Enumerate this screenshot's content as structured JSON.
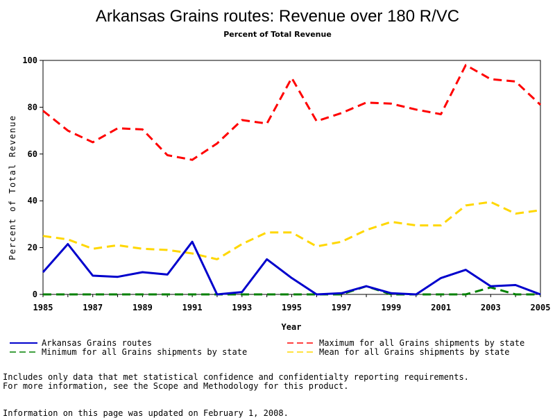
{
  "chart_data": {
    "type": "line",
    "title": "Arkansas Grains routes: Revenue over 180 R/VC",
    "subtitle": "Percent of Total Revenue",
    "xlabel": "Year",
    "ylabel": "Percent of Total Revenue",
    "xlim": [
      1985,
      2005
    ],
    "ylim": [
      0,
      100
    ],
    "x_ticks": [
      "1985",
      "1987",
      "1989",
      "1991",
      "1993",
      "1995",
      "1997",
      "1999",
      "2001",
      "2003",
      "2005"
    ],
    "y_ticks": [
      "0",
      "20",
      "40",
      "60",
      "80",
      "100"
    ],
    "grid": false,
    "legend_position": "bottom",
    "x": [
      1985,
      1986,
      1987,
      1988,
      1989,
      1990,
      1991,
      1992,
      1993,
      1994,
      1995,
      1996,
      1997,
      1998,
      1999,
      2000,
      2001,
      2002,
      2003,
      2004,
      2005
    ],
    "series": [
      {
        "name": "Arkansas Grains routes",
        "color": "#0000cc",
        "style": "solid",
        "values": [
          9.5,
          21.5,
          8,
          7.5,
          9.5,
          8.5,
          22.5,
          0,
          1,
          15,
          7,
          0,
          0.5,
          3.5,
          0.5,
          0,
          7,
          10.5,
          3.5,
          4,
          0
        ]
      },
      {
        "name": "Maximum for all Grains shipments by state",
        "color": "#ff0000",
        "style": "dashed",
        "values": [
          78.5,
          70,
          65,
          71,
          70.5,
          59.5,
          57.5,
          64.5,
          74.5,
          73,
          92.5,
          74,
          77.5,
          82,
          81.5,
          79,
          77,
          98,
          92,
          91,
          81
        ]
      },
      {
        "name": "Minimum for all Grains shipments by state",
        "color": "#008000",
        "style": "dashed",
        "values": [
          0,
          0,
          0,
          0,
          0,
          0,
          0,
          0,
          0,
          0,
          0,
          0,
          0,
          3.5,
          0,
          0,
          0,
          0,
          3,
          0,
          0
        ]
      },
      {
        "name": "Mean for all Grains shipments by state",
        "color": "#ffd700",
        "style": "dashed",
        "values": [
          25,
          23.5,
          19.5,
          21,
          19.5,
          19,
          17.5,
          15,
          21.5,
          26.5,
          26.5,
          20.5,
          22.5,
          27.5,
          31,
          29.5,
          29.5,
          38,
          39.5,
          34.5,
          36
        ]
      }
    ]
  },
  "notes": {
    "line1": "Includes only data that met statistical confidence and confidentialty reporting requirements.",
    "line2": "For more information, see the Scope and Methodology for this product.",
    "updated": "Information on this page was updated on February 1, 2008."
  }
}
